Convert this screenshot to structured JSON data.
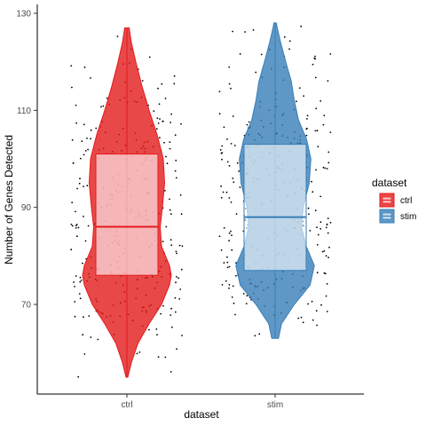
{
  "chart_data": {
    "type": "violin",
    "xlabel": "dataset",
    "ylabel": "Number of Genes Detected",
    "ylim": [
      50,
      130
    ],
    "yticks": [
      70,
      90,
      110,
      130
    ],
    "categories": [
      "ctrl",
      "stim"
    ],
    "series": [
      {
        "name": "ctrl",
        "color": "#E41A1C",
        "min": 55,
        "q1": 76,
        "median": 86,
        "q3": 101,
        "max": 127,
        "density": [
          [
            55,
            0.02
          ],
          [
            58,
            0.1
          ],
          [
            62,
            0.25
          ],
          [
            66,
            0.5
          ],
          [
            70,
            0.78
          ],
          [
            74,
            0.96
          ],
          [
            76,
            1.0
          ],
          [
            78,
            0.96
          ],
          [
            82,
            0.78
          ],
          [
            86,
            0.75
          ],
          [
            90,
            0.8
          ],
          [
            95,
            0.85
          ],
          [
            100,
            0.82
          ],
          [
            105,
            0.68
          ],
          [
            110,
            0.5
          ],
          [
            115,
            0.34
          ],
          [
            120,
            0.2
          ],
          [
            124,
            0.1
          ],
          [
            127,
            0.05
          ]
        ]
      },
      {
        "name": "stim",
        "color": "#377EB8",
        "min": 63,
        "q1": 77,
        "median": 88,
        "q3": 103,
        "max": 128,
        "density": [
          [
            63,
            0.08
          ],
          [
            66,
            0.15
          ],
          [
            70,
            0.45
          ],
          [
            74,
            0.82
          ],
          [
            78,
            0.92
          ],
          [
            82,
            0.73
          ],
          [
            86,
            0.62
          ],
          [
            90,
            0.66
          ],
          [
            95,
            0.8
          ],
          [
            100,
            0.84
          ],
          [
            104,
            0.74
          ],
          [
            108,
            0.55
          ],
          [
            112,
            0.45
          ],
          [
            116,
            0.38
          ],
          [
            120,
            0.25
          ],
          [
            124,
            0.13
          ],
          [
            127,
            0.05
          ],
          [
            128,
            0.03
          ]
        ]
      }
    ],
    "legend": {
      "title": "dataset",
      "entries": [
        "ctrl",
        "stim"
      ],
      "position": "right"
    }
  }
}
